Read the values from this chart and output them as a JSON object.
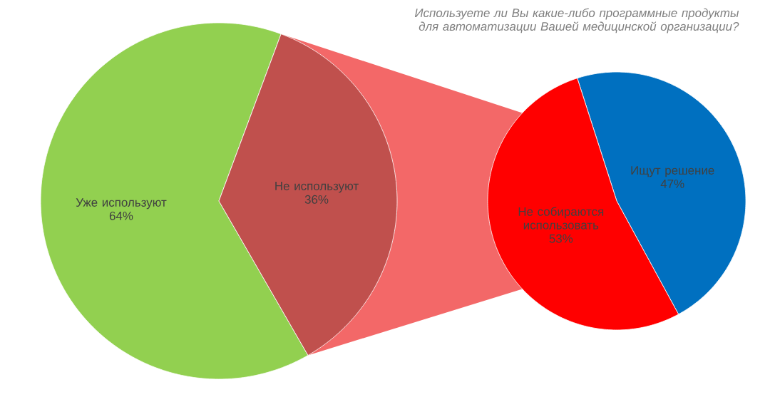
{
  "chart_data": [
    {
      "type": "pie",
      "categories": [
        "Уже используют",
        "Не используют"
      ],
      "values": [
        64,
        36
      ],
      "colors": [
        "#92d050",
        "#c0504d"
      ],
      "value_labels": [
        "64%",
        "36%"
      ]
    },
    {
      "type": "pie",
      "title": "Используете ли Вы какие-либо программные продукты для автоматизации Вашей медицинской организации?",
      "categories": [
        "Ищут решение",
        "Не собираются использовать"
      ],
      "values": [
        47,
        53
      ],
      "colors": [
        "#0070c0",
        "#ff0000"
      ],
      "value_labels": [
        "47%",
        "53%"
      ]
    }
  ]
}
